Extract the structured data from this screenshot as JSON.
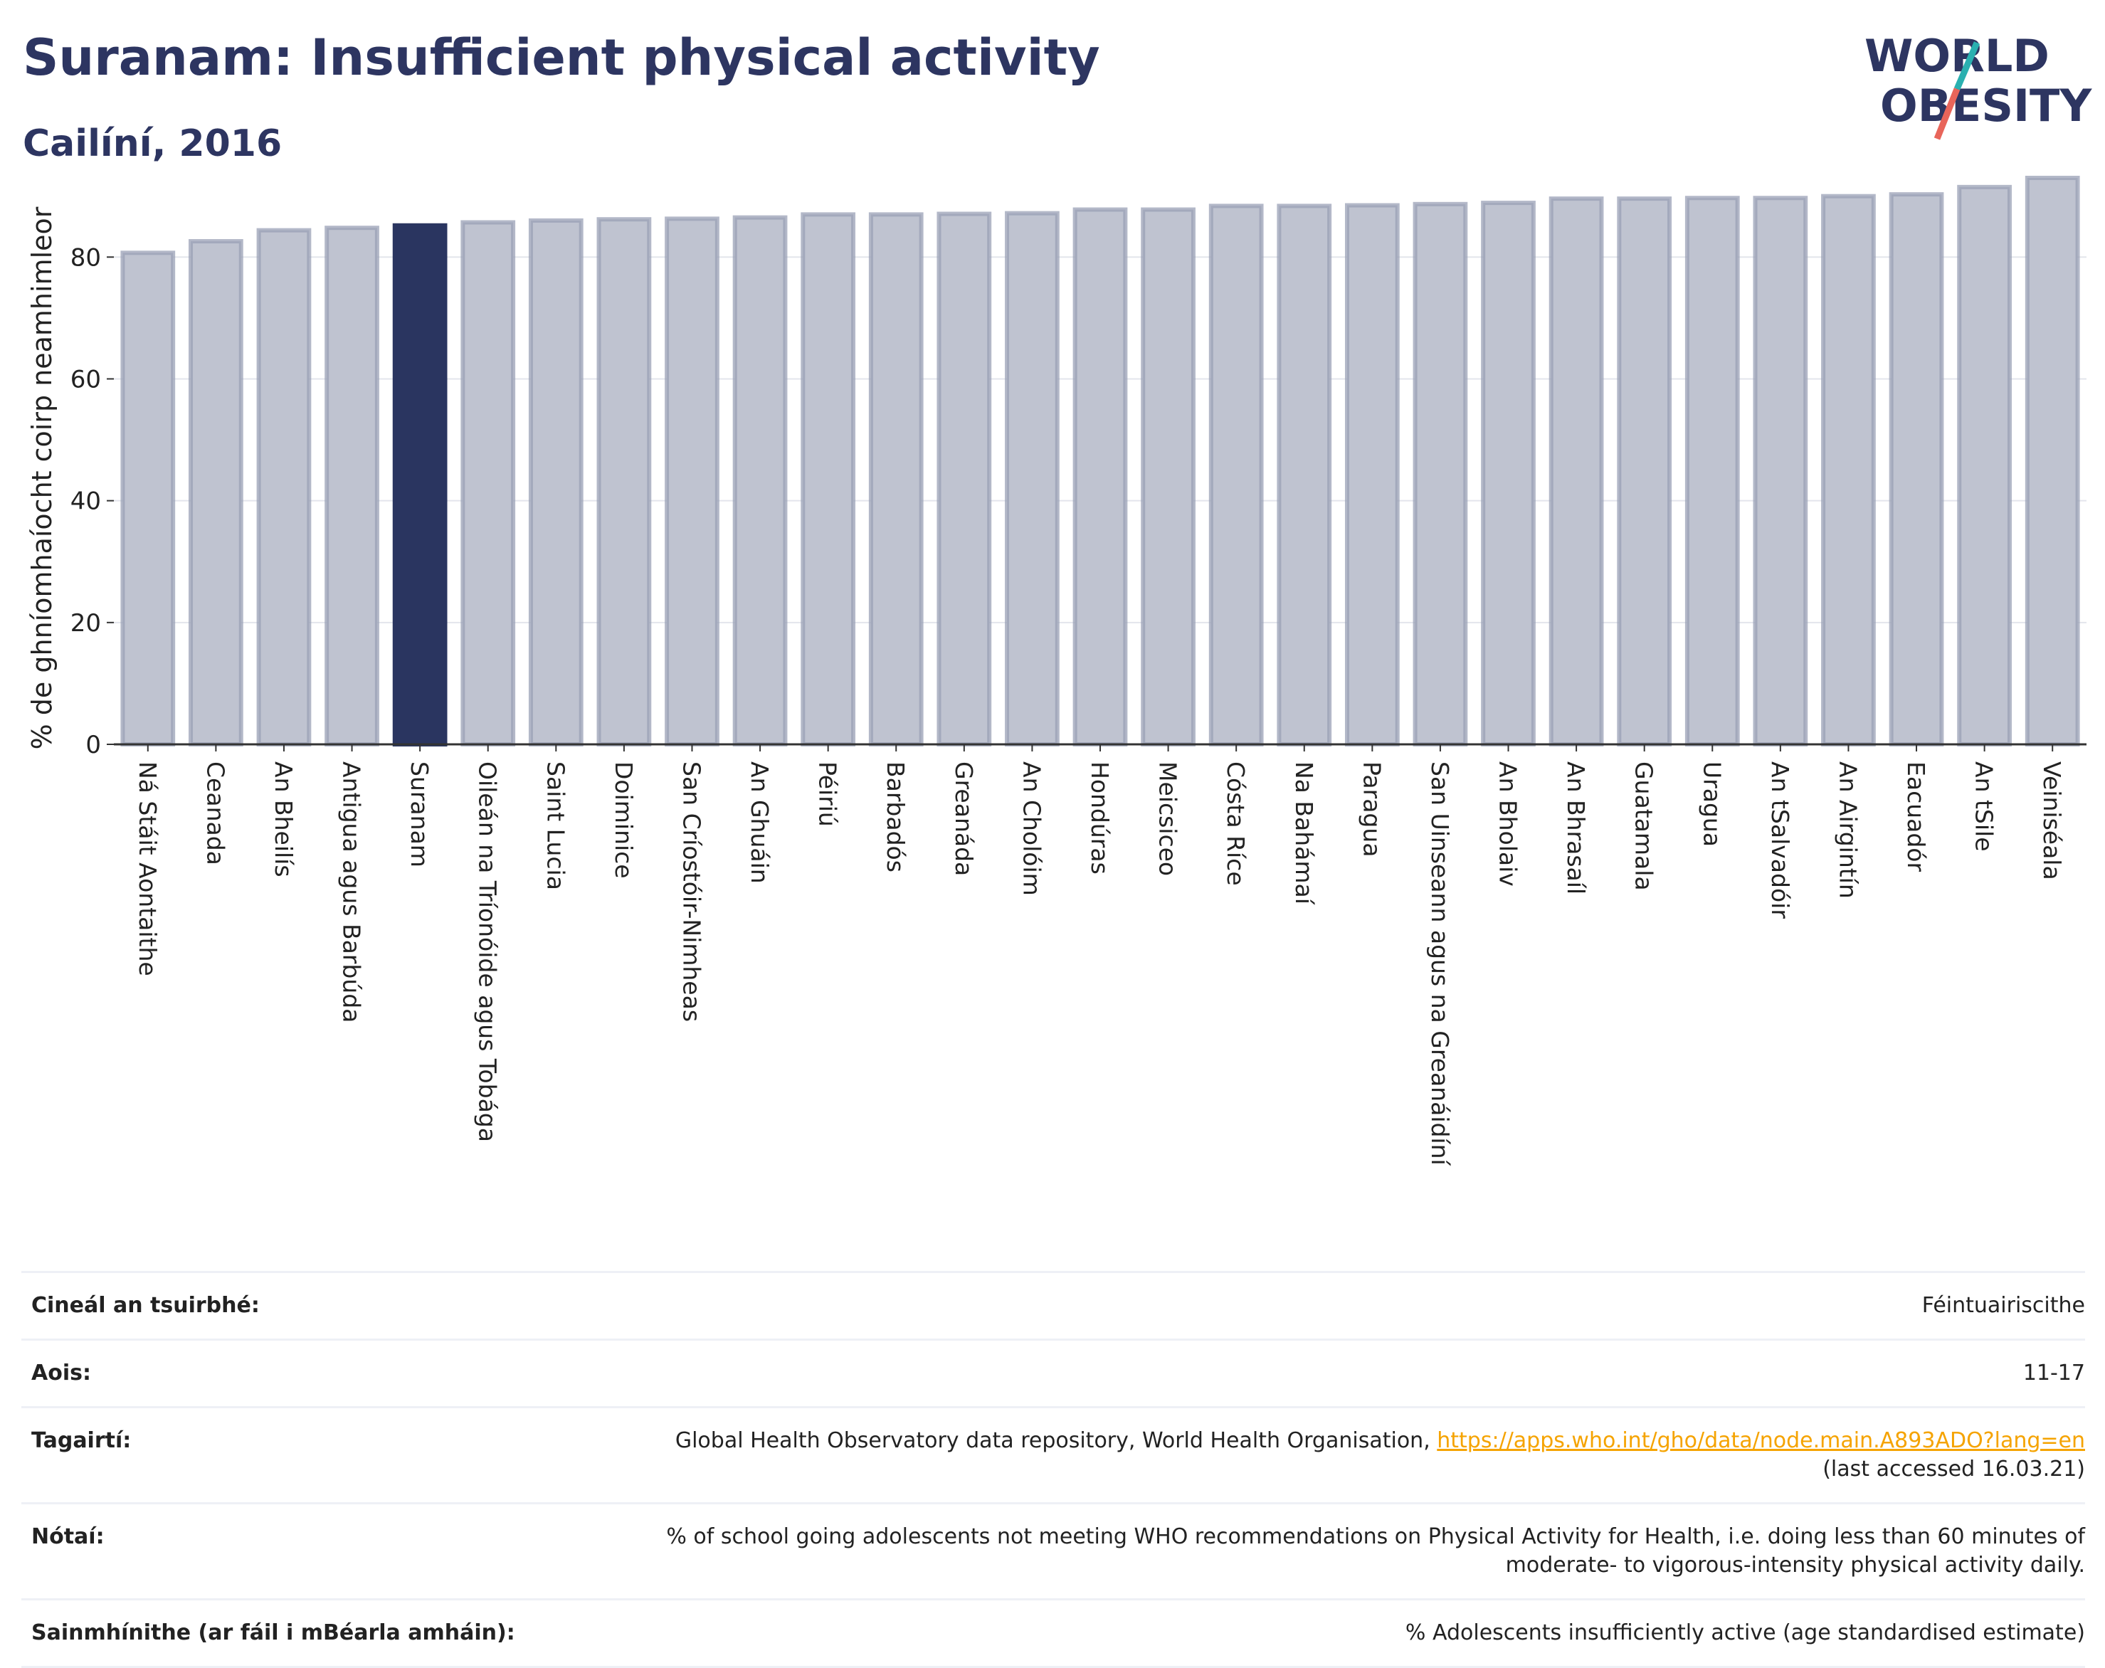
{
  "header": {
    "title": "Suranam: Insufficient physical activity",
    "subtitle": "Cailíní, 2016"
  },
  "logo": {
    "line1": "WORLD",
    "line2": "OBESITY",
    "accent_colors": [
      "#2ab0b0",
      "#e8655a"
    ]
  },
  "chart_data": {
    "type": "bar",
    "title": "Suranam: Insufficient physical activity",
    "subtitle": "Cailíní, 2016",
    "xlabel": "",
    "ylabel": "% de ghníomhaíocht coirp neamhimleor",
    "ylim": [
      0,
      93
    ],
    "yticks": [
      0,
      20,
      40,
      60,
      80
    ],
    "grid": true,
    "highlight_category": "Suranam",
    "colors": {
      "bar": "#bfc3d0",
      "bar_edge": "#9aa0b6",
      "highlight": "#2a3560"
    },
    "categories": [
      "Ná Stáit Aontaithe",
      "Ceanada",
      "An Bheilís",
      "Antigua agus Barbúda",
      "Suranam",
      "Oileán na Tríonóide agus Tobága",
      "Saint Lucia",
      "Doiminice",
      "San Críostóir-Nimheas",
      "An Ghuáin",
      "Péiriú",
      "Barbadós",
      "Greanáda",
      "An Cholóim",
      "Hondúras",
      "Meicsiceo",
      "Cósta Ríce",
      "Na Bahámaí",
      "Paragua",
      "San Uinseann agus na Greanáidíní",
      "An Bholaiv",
      "An Bhrasaíl",
      "Guatamala",
      "Uragua",
      "An tSalvadóir",
      "An Airgintín",
      "Eacuadór",
      "An tSile",
      "Veiniséala"
    ],
    "values": [
      80.7,
      82.6,
      84.4,
      84.8,
      85.2,
      85.7,
      86.0,
      86.2,
      86.3,
      86.5,
      87.0,
      87.0,
      87.1,
      87.2,
      87.8,
      87.8,
      88.4,
      88.4,
      88.5,
      88.7,
      88.9,
      89.6,
      89.6,
      89.7,
      89.7,
      90.0,
      90.3,
      91.5,
      93.0
    ]
  },
  "info": {
    "survey_type": {
      "label": "Cineál an tsuirbhé:",
      "value": "Féintuairiscithe"
    },
    "age": {
      "label": "Aois:",
      "value": "11-17"
    },
    "references": {
      "label": "Tagairtí:",
      "text": "Global Health Observatory data repository, World Health Organisation, ",
      "link": "https://apps.who.int/gho/data/node.main.A893ADO?lang=en",
      "accessed": "(last accessed 16.03.21)"
    },
    "notes": {
      "label": "Nótaí:",
      "value": "% of school going adolescents not meeting WHO recommendations on Physical Activity for Health, i.e. doing less than 60 minutes of moderate- to vigorous-intensity physical activity daily."
    },
    "definitions": {
      "label": "Sainmhínithe (ar fáil i mBéarla amháin):",
      "value": "% Adolescents insufficiently active (age standardised estimate)"
    }
  }
}
